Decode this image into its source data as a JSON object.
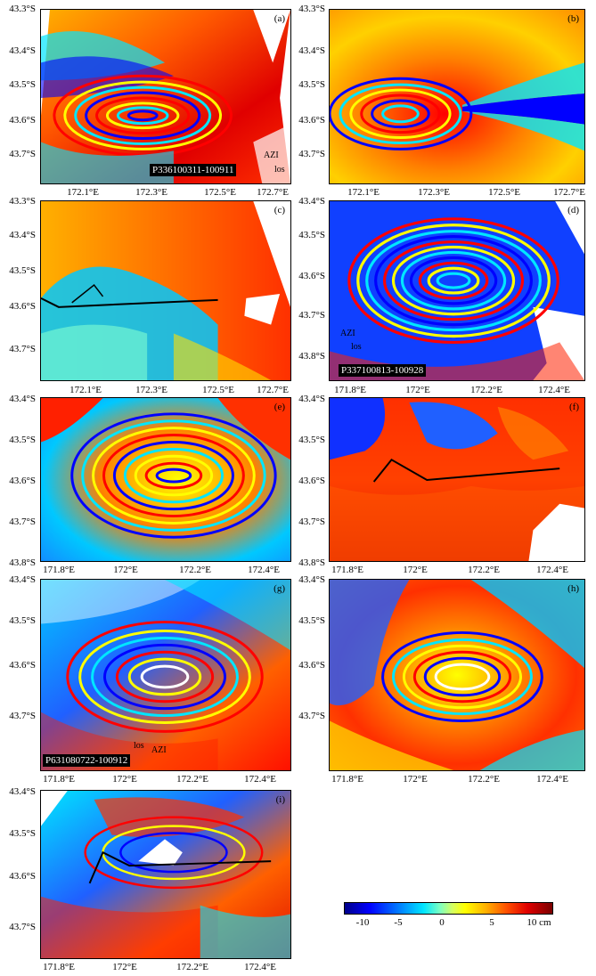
{
  "panels": [
    {
      "id": "a",
      "label": "(a)",
      "lat": [
        "43.3°S",
        "43.4°S",
        "43.5°S",
        "43.6°S",
        "43.7°S"
      ],
      "lon": [
        "172.1°E",
        "172.3°E",
        "172.5°E",
        "172.7°E"
      ],
      "tag": "P336100311-100911",
      "azi": "AZI",
      "los": "los"
    },
    {
      "id": "b",
      "label": "(b)",
      "lat": [
        "43.3°S",
        "43.4°S",
        "43.5°S",
        "43.6°S",
        "43.7°S"
      ],
      "lon": [
        "172.1°E",
        "172.3°E",
        "172.5°E",
        "172.7°E"
      ]
    },
    {
      "id": "c",
      "label": "(c)",
      "lat": [
        "43.3°S",
        "43.4°S",
        "43.5°S",
        "43.6°S",
        "43.7°S"
      ],
      "lon": [
        "172.1°E",
        "172.3°E",
        "172.5°E",
        "172.7°E"
      ]
    },
    {
      "id": "d",
      "label": "(d)",
      "lat": [
        "43.4°S",
        "43.5°S",
        "43.6°S",
        "43.7°S",
        "43.8°S"
      ],
      "lon": [
        "171.8°E",
        "172°E",
        "172.2°E",
        "172.4°E"
      ],
      "tag": "P337100813-100928",
      "azi": "AZI",
      "los": "los"
    },
    {
      "id": "e",
      "label": "(e)",
      "lat": [
        "43.4°S",
        "43.5°S",
        "43.6°S",
        "43.7°S",
        "43.8°S"
      ],
      "lon": [
        "171.8°E",
        "172°E",
        "172.2°E",
        "172.4°E"
      ]
    },
    {
      "id": "f",
      "label": "(f)",
      "lat": [
        "43.4°S",
        "43.5°S",
        "43.6°S",
        "43.7°S",
        "43.8°S"
      ],
      "lon": [
        "171.8°E",
        "172°E",
        "172.2°E",
        "172.4°E"
      ]
    },
    {
      "id": "g",
      "label": "(g)",
      "lat": [
        "43.4°S",
        "43.5°S",
        "43.6°S",
        "43.7°S"
      ],
      "lon": [
        "171.8°E",
        "172°E",
        "172.2°E",
        "172.4°E"
      ],
      "tag": "P631080722-100912",
      "azi": "AZI",
      "los": "los"
    },
    {
      "id": "h",
      "label": "(h)",
      "lat": [
        "43.4°S",
        "43.5°S",
        "43.6°S",
        "43.7°S"
      ],
      "lon": [
        "171.8°E",
        "172°E",
        "172.2°E",
        "172.4°E"
      ]
    },
    {
      "id": "i",
      "label": "(i)",
      "lat": [
        "43.4°S",
        "43.5°S",
        "43.6°S",
        "43.7°S"
      ],
      "lon": [
        "171.8°E",
        "172°E",
        "172.2°E",
        "172.4°E"
      ]
    }
  ],
  "colorbar": {
    "ticks": [
      "-10",
      "-5",
      "0",
      "5",
      "10 cm"
    ],
    "colors": [
      "#00008a",
      "#0000ff",
      "#00e6ff",
      "#ffff00",
      "#ff5000",
      "#7a0000"
    ]
  }
}
